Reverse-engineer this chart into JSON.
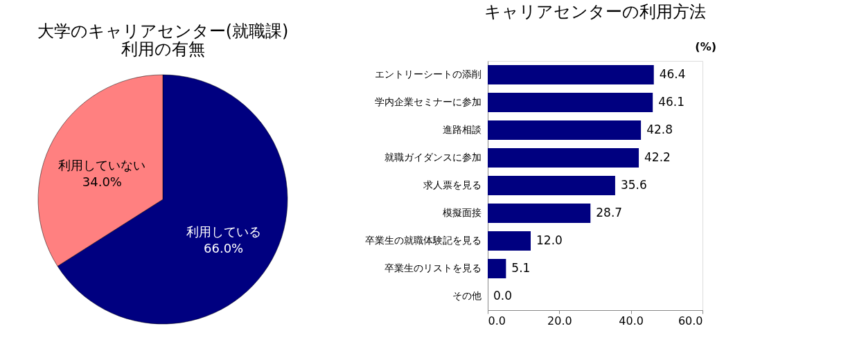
{
  "chart_data": [
    {
      "type": "pie",
      "title": "大学のキャリアセンター(就職課)\n利用の有無",
      "categories": [
        "利用している",
        "利用していない"
      ],
      "values": [
        66.0,
        34.0
      ],
      "colors": [
        "#000080",
        "#ff8080"
      ],
      "value_labels": [
        "66.0%",
        "34.0%"
      ],
      "legend": false
    },
    {
      "type": "bar",
      "orientation": "horizontal",
      "title": "キャリアセンターの利用方法",
      "categories": [
        "エントリーシートの添削",
        "学内企業セミナーに参加",
        "進路相談",
        "就職ガイダンスに参加",
        "求人票を見る",
        "模擬面接",
        "卒業生の就職体験記を見る",
        "卒業生のリストを見る",
        "その他"
      ],
      "series": [
        {
          "color": "#000080",
          "values": [
            46.4,
            46.1,
            42.8,
            42.2,
            35.6,
            28.7,
            12.0,
            5.1,
            0.0
          ],
          "value_labels": [
            "46.4",
            "46.1",
            "42.8",
            "42.2",
            "35.6",
            "28.7",
            "12.0",
            "5.1",
            "0.0"
          ]
        }
      ],
      "xlim": [
        0,
        60
      ],
      "xticks": [
        {
          "value": 0,
          "label": "0.0"
        },
        {
          "value": 20,
          "label": "20.0"
        },
        {
          "value": 40,
          "label": "40.0"
        },
        {
          "value": 60,
          "label": "60.0"
        }
      ],
      "annotations": [
        "(%)"
      ],
      "grid": false
    }
  ]
}
